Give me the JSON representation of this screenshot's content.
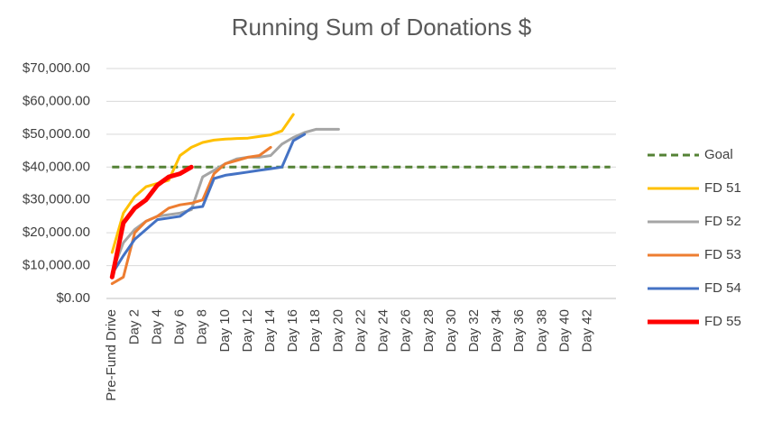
{
  "chart_data": {
    "type": "line",
    "title": "Running Sum of Donations $",
    "categories": [
      "Pre-Fund Drive",
      null,
      "Day 2",
      null,
      "Day 4",
      null,
      "Day 6",
      null,
      "Day 8",
      null,
      "Day 10",
      null,
      "Day 12",
      null,
      "Day 14",
      null,
      "Day 16",
      null,
      "Day 18",
      null,
      "Day 20",
      null,
      "Day 22",
      null,
      "Day 24",
      null,
      "Day 26",
      null,
      "Day 28",
      null,
      "Day 30",
      null,
      "Day 32",
      null,
      "Day 34",
      null,
      "Day 36",
      null,
      "Day 38",
      null,
      "Day 40",
      null,
      "Day 42",
      null,
      null
    ],
    "ylim": [
      0,
      70000
    ],
    "yticks": [
      {
        "value": 0,
        "label": "$0.00"
      },
      {
        "value": 10000,
        "label": "$10,000.00"
      },
      {
        "value": 20000,
        "label": "$20,000.00"
      },
      {
        "value": 30000,
        "label": "$30,000.00"
      },
      {
        "value": 40000,
        "label": "$40,000.00"
      },
      {
        "value": 50000,
        "label": "$50,000.00"
      },
      {
        "value": 60000,
        "label": "$60,000.00"
      },
      {
        "value": 70000,
        "label": "$70,000.00"
      }
    ],
    "grid": true,
    "legend": "right",
    "series": [
      {
        "name": "Goal",
        "color": "#548235",
        "dashed": true,
        "values": [
          40000,
          40000,
          40000,
          40000,
          40000,
          40000,
          40000,
          40000,
          40000,
          40000,
          40000,
          40000,
          40000,
          40000,
          40000,
          40000,
          40000,
          40000,
          40000,
          40000,
          40000,
          40000,
          40000,
          40000,
          40000,
          40000,
          40000,
          40000,
          40000,
          40000,
          40000,
          40000,
          40000,
          40000,
          40000,
          40000,
          40000,
          40000,
          40000,
          40000,
          40000,
          40000,
          40000,
          40000,
          40000
        ]
      },
      {
        "name": "FD 51",
        "color": "#ffc000",
        "values": [
          14000,
          26000,
          31000,
          34000,
          35000,
          36000,
          43500,
          46000,
          47500,
          48200,
          48500,
          48700,
          48800,
          49300,
          49800,
          51000,
          56000,
          null,
          null,
          null,
          null,
          null,
          null,
          null,
          null,
          null,
          null,
          null,
          null,
          null,
          null,
          null,
          null,
          null,
          null,
          null,
          null,
          null,
          null,
          null,
          null,
          null,
          null,
          null,
          null
        ]
      },
      {
        "name": "FD 52",
        "color": "#a5a5a5",
        "values": [
          8000,
          17000,
          21000,
          23500,
          25000,
          25500,
          26000,
          27000,
          37000,
          39000,
          41000,
          42500,
          43000,
          43000,
          43500,
          47000,
          49000,
          50500,
          51500,
          51500,
          51500,
          null,
          null,
          null,
          null,
          null,
          null,
          null,
          null,
          null,
          null,
          null,
          null,
          null,
          null,
          null,
          null,
          null,
          null,
          null,
          null,
          null,
          null,
          null,
          null
        ]
      },
      {
        "name": "FD 53",
        "color": "#ed7d31",
        "values": [
          4500,
          6500,
          20000,
          23500,
          25000,
          27500,
          28500,
          29000,
          30000,
          38000,
          41000,
          42000,
          43000,
          43500,
          46000,
          null,
          null,
          null,
          null,
          null,
          null,
          null,
          null,
          null,
          null,
          null,
          null,
          null,
          null,
          null,
          null,
          null,
          null,
          null,
          null,
          null,
          null,
          null,
          null,
          null,
          null,
          null,
          null,
          null,
          null
        ]
      },
      {
        "name": "FD 54",
        "color": "#4472c4",
        "values": [
          7500,
          13000,
          18000,
          21000,
          24000,
          24500,
          25000,
          27500,
          28000,
          36500,
          37500,
          38000,
          38500,
          39000,
          39500,
          40000,
          48000,
          50000,
          null,
          null,
          null,
          null,
          null,
          null,
          null,
          null,
          null,
          null,
          null,
          null,
          null,
          null,
          null,
          null,
          null,
          null,
          null,
          null,
          null,
          null,
          null,
          null,
          null,
          null,
          null
        ]
      },
      {
        "name": "FD 55",
        "color": "#ff0000",
        "thick": true,
        "values": [
          6500,
          23000,
          27500,
          30000,
          34500,
          37000,
          38000,
          40000,
          null,
          null,
          null,
          null,
          null,
          null,
          null,
          null,
          null,
          null,
          null,
          null,
          null,
          null,
          null,
          null,
          null,
          null,
          null,
          null,
          null,
          null,
          null,
          null,
          null,
          null,
          null,
          null,
          null,
          null,
          null,
          null,
          null,
          null,
          null,
          null,
          null
        ]
      }
    ]
  }
}
